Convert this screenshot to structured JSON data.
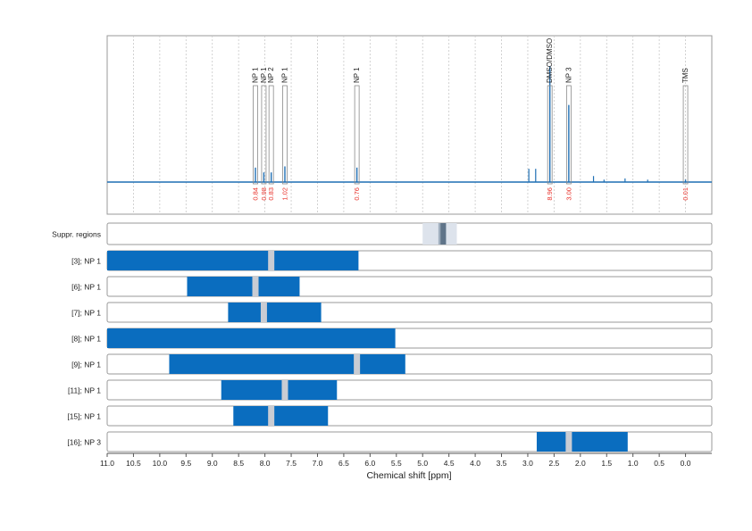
{
  "chart_data": {
    "type": "nmr-spectrum",
    "xlabel": "Chemical shift [ppm]",
    "xlim": [
      11.0,
      -0.5
    ],
    "x_ticks": [
      "11.0",
      "10.5",
      "10.0",
      "9.5",
      "9.0",
      "8.5",
      "8.0",
      "7.5",
      "7.0",
      "6.5",
      "6.0",
      "5.5",
      "5.0",
      "4.5",
      "4.0",
      "3.5",
      "3.0",
      "2.5",
      "2.0",
      "1.5",
      "1.0",
      "0.5",
      "0.0"
    ],
    "colors": {
      "spectrum": "#1f6fb4",
      "bar": "#0a6dbf",
      "integral": "#e8312a",
      "band": "#c9ccd3",
      "suppr_outer": "#dde3ec",
      "suppr_inner": "#5f7489"
    },
    "peaks": [
      {
        "label": "NP 1",
        "ppm": 8.18,
        "integral": "0.84",
        "height": 0.12
      },
      {
        "label": "NP 1",
        "ppm": 8.02,
        "integral": "0.98",
        "height": 0.08
      },
      {
        "label": "NP 2",
        "ppm": 7.88,
        "integral": "0.83",
        "height": 0.08
      },
      {
        "label": "NP 1",
        "ppm": 7.62,
        "integral": "1.02",
        "height": 0.13
      },
      {
        "label": "NP 1",
        "ppm": 6.25,
        "integral": "0.76",
        "height": 0.12
      },
      {
        "label": "DMSO/DMSO",
        "ppm": 2.58,
        "integral": "8.96",
        "height": 0.96
      },
      {
        "label": "NP 3",
        "ppm": 2.22,
        "integral": "3.00",
        "height": 0.64
      },
      {
        "label": "TMS",
        "ppm": 0.0,
        "integral": "0.01",
        "height": 0.02
      }
    ],
    "minor_peaks": [
      {
        "ppm": 2.98,
        "height": 0.11
      },
      {
        "ppm": 2.85,
        "height": 0.11
      },
      {
        "ppm": 1.75,
        "height": 0.05
      },
      {
        "ppm": 1.55,
        "height": 0.02
      },
      {
        "ppm": 1.15,
        "height": 0.03
      },
      {
        "ppm": 0.72,
        "height": 0.02
      }
    ],
    "suppression": {
      "label": "Suppr. regions",
      "outer": [
        5.0,
        4.35
      ],
      "inner": [
        4.7,
        4.55
      ],
      "core": [
        4.66,
        4.56
      ]
    },
    "rows": [
      {
        "label": "[3]; NP 1",
        "range": [
          11.0,
          6.22
        ],
        "band": 7.88
      },
      {
        "label": "[6]; NP 1",
        "range": [
          9.48,
          7.34
        ],
        "band": 8.18
      },
      {
        "label": "[7]; NP 1",
        "range": [
          8.7,
          6.93
        ],
        "band": 8.02
      },
      {
        "label": "[8]; NP 1",
        "range": [
          11.0,
          5.52
        ],
        "band": null
      },
      {
        "label": "[9]; NP 1",
        "range": [
          9.82,
          5.33
        ],
        "band": 6.25
      },
      {
        "label": "[11]; NP 1",
        "range": [
          8.83,
          6.63
        ],
        "band": 7.62
      },
      {
        "label": "[15]; NP 1",
        "range": [
          8.6,
          6.8
        ],
        "band": 7.88
      },
      {
        "label": "[16]; NP 3",
        "range": [
          2.83,
          1.1
        ],
        "band": 2.22
      }
    ]
  }
}
